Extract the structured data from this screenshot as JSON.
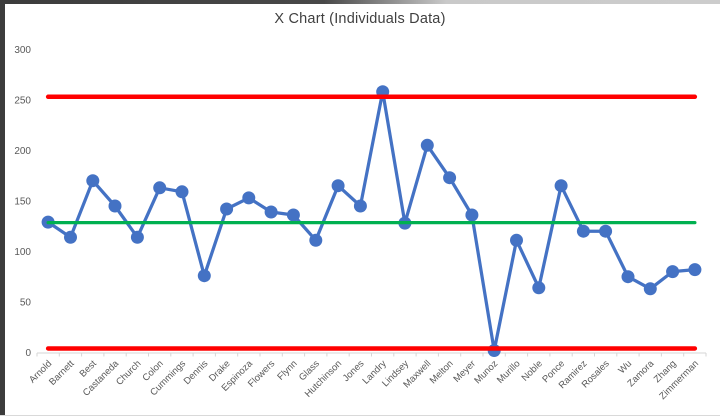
{
  "chart_data": {
    "type": "line",
    "title": "X Chart (Individuals Data)",
    "categories": [
      "Arnold",
      "Barnett",
      "Best",
      "Castaneda",
      "Church",
      "Colon",
      "Cummings",
      "Dennis",
      "Drake",
      "Espinoza",
      "Flowers",
      "Flynn",
      "Glass",
      "Hutchinson",
      "Jones",
      "Landry",
      "Lindsey",
      "Maxwell",
      "Melton",
      "Meyer",
      "Munoz",
      "Murillo",
      "Noble",
      "Ponce",
      "Ramirez",
      "Rosales",
      "Wu",
      "Zamora",
      "Zhang",
      "Zimmerman"
    ],
    "series": [
      {
        "color": "#4472C4",
        "values": [
          129,
          114,
          170,
          145,
          114,
          163,
          159,
          76,
          142,
          153,
          139,
          136,
          111,
          165,
          145,
          258,
          128,
          205,
          173,
          136,
          2,
          111,
          64,
          165,
          120,
          120,
          75,
          63,
          80,
          82
        ]
      }
    ],
    "control_lines": {
      "upper": {
        "value": 253,
        "color": "#FF0000"
      },
      "center": {
        "value": 128.5,
        "color": "#00B050"
      },
      "lower": {
        "value": 4,
        "color": "#FF0000"
      }
    },
    "y_axis": {
      "min": 0,
      "max": 300,
      "step": 50
    },
    "x_axis_label_rotation": -45,
    "gridlines": false,
    "legend": "none"
  },
  "style": {
    "axis_line_color": "#d6d6d6",
    "tick_label_color": "#595959",
    "title_color": "#404040"
  }
}
